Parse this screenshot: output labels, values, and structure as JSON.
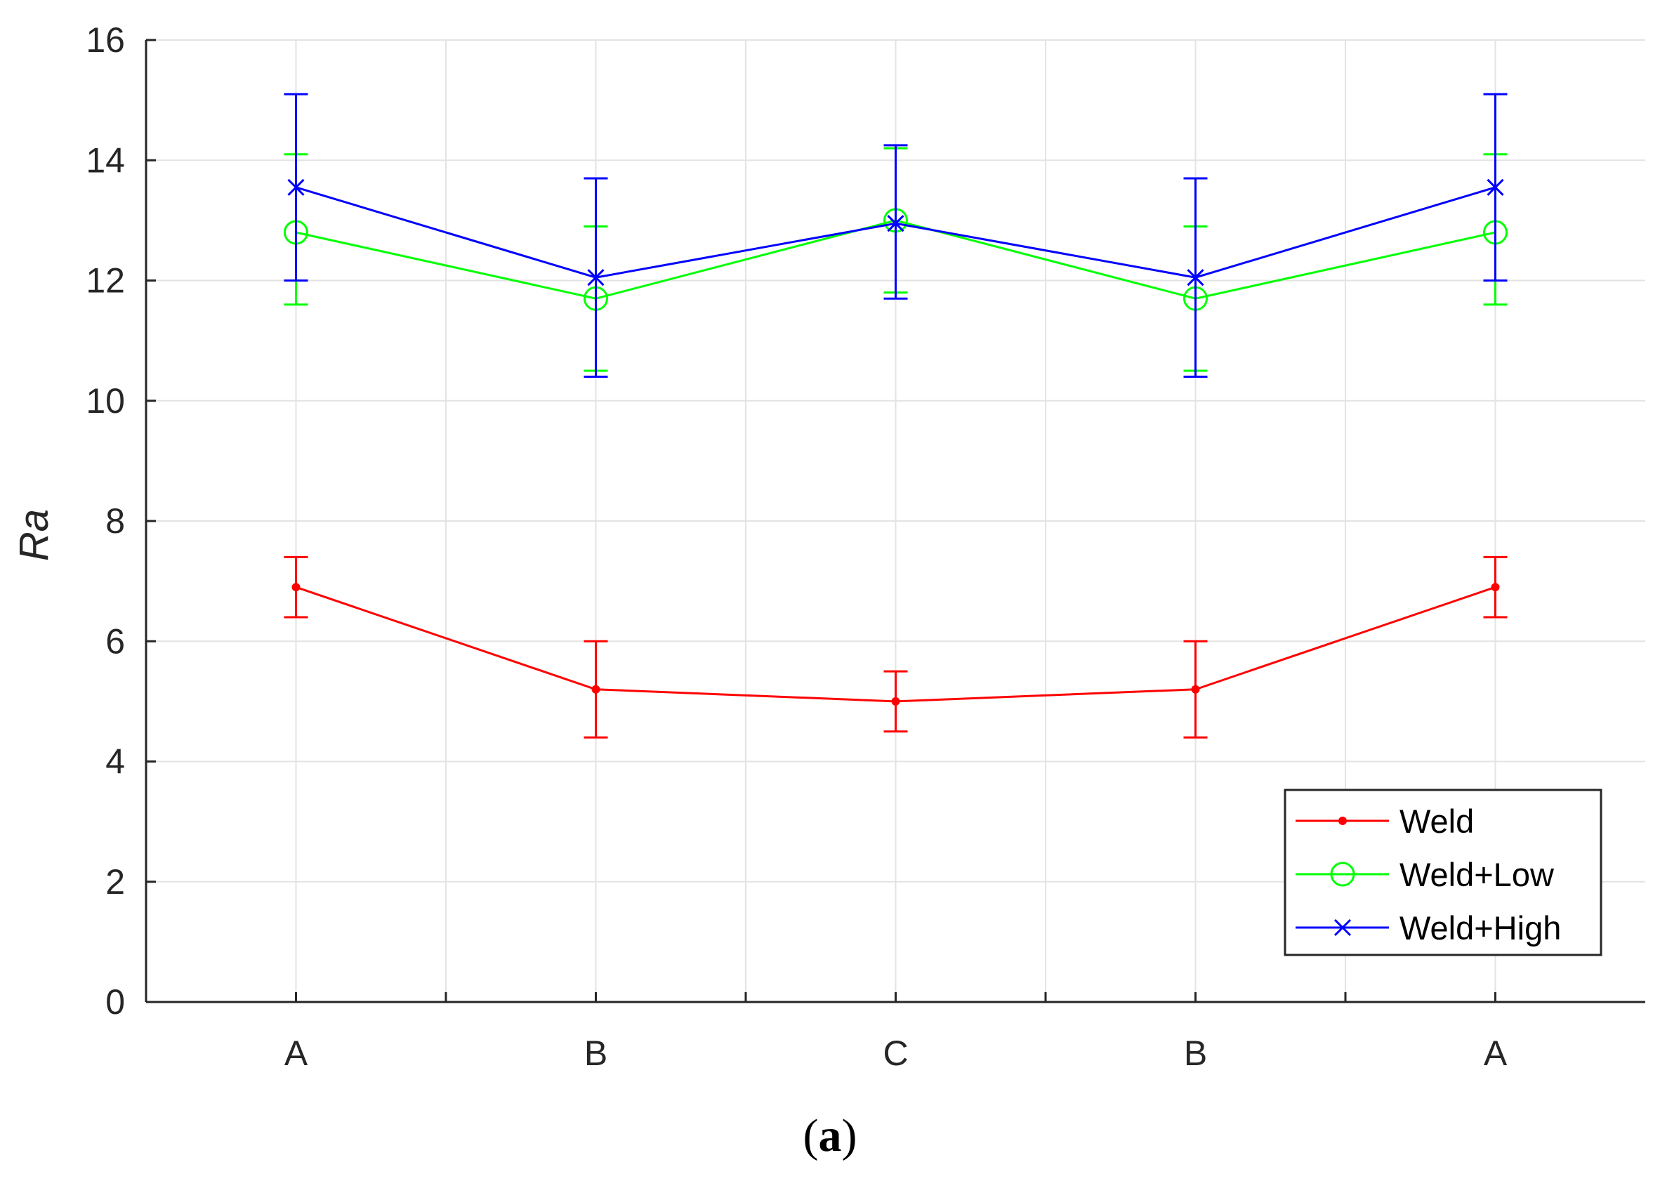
{
  "chart_data": {
    "type": "line",
    "title": "",
    "xlabel": "",
    "ylabel": "Ra",
    "categories": [
      "A",
      "B",
      "C",
      "B",
      "A"
    ],
    "ylim": [
      0,
      16
    ],
    "yticks": [
      0,
      2,
      4,
      6,
      8,
      10,
      12,
      14,
      16
    ],
    "grid": true,
    "legend_position": "bottom-right",
    "series": [
      {
        "name": "Weld",
        "color": "#ff0000",
        "marker": "dot",
        "values": [
          6.9,
          5.2,
          5.0,
          5.2,
          6.9
        ],
        "error_low": [
          6.4,
          4.4,
          4.5,
          4.4,
          6.4
        ],
        "error_high": [
          7.4,
          6.0,
          5.5,
          6.0,
          7.4
        ]
      },
      {
        "name": "Weld+Low",
        "color": "#00ff00",
        "marker": "circle",
        "values": [
          12.8,
          11.7,
          13.0,
          11.7,
          12.8
        ],
        "error_low": [
          11.6,
          10.5,
          11.8,
          10.5,
          11.6
        ],
        "error_high": [
          14.1,
          12.9,
          14.2,
          12.9,
          14.1
        ]
      },
      {
        "name": "Weld+High",
        "color": "#0000ff",
        "marker": "x",
        "values": [
          13.55,
          12.05,
          12.95,
          12.05,
          13.55
        ],
        "error_low": [
          12.0,
          10.4,
          11.7,
          10.4,
          12.0
        ],
        "error_high": [
          15.1,
          13.7,
          14.25,
          13.7,
          15.1
        ]
      }
    ]
  },
  "caption": {
    "open": "(",
    "label": "a",
    "close": ")"
  }
}
